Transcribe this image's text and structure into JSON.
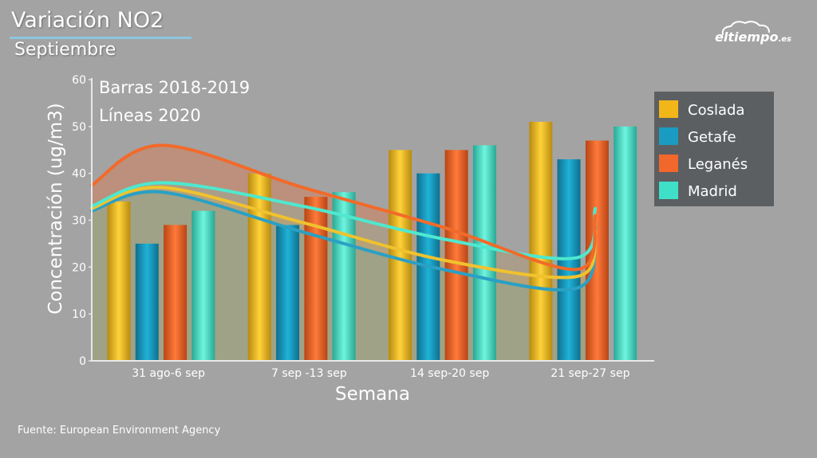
{
  "header": {
    "title": "Variación NO2",
    "subtitle": "Septiembre"
  },
  "brand": {
    "logo_text": "eltiempo",
    "logo_suffix": ".es"
  },
  "footer": {
    "source": "Fuente: European Environment Agency"
  },
  "chart_data": {
    "type": "bar",
    "title": "Variación NO2",
    "subtitle": "Septiembre",
    "xlabel": "Semana",
    "ylabel": "Concentración (ug/m3)",
    "ylim": [
      0,
      60
    ],
    "yticks": [
      0,
      10,
      20,
      30,
      40,
      50,
      60
    ],
    "grid": false,
    "legend_position": "top-right",
    "annotations": [
      "Barras 2018-2019",
      "Líneas 2020"
    ],
    "categories": [
      "31 ago-6 sep",
      "7 sep -13 sep",
      "14 sep-20 sep",
      "21 sep-27 sep"
    ],
    "bar_series": [
      {
        "name": "Coslada",
        "color": "#f2b619",
        "values": [
          34,
          40,
          45,
          51
        ]
      },
      {
        "name": "Getafe",
        "color": "#1a9cc2",
        "values": [
          25,
          29,
          40,
          43
        ]
      },
      {
        "name": "Leganés",
        "color": "#f2672b",
        "values": [
          29,
          35,
          45,
          47
        ]
      },
      {
        "name": "Madrid",
        "color": "#3fe0c8",
        "values": [
          32,
          36,
          46,
          50
        ]
      }
    ],
    "line_series": [
      {
        "name": "Coslada",
        "color": "#f0c22e",
        "x": [
          0,
          0.5,
          1.5,
          2.5,
          3.45,
          3.58
        ],
        "values": [
          32.5,
          37,
          29.5,
          21.5,
          18,
          27.5
        ]
      },
      {
        "name": "Getafe",
        "color": "#2aa0c4",
        "x": [
          0,
          0.5,
          1.5,
          2.5,
          3.45,
          3.58
        ],
        "values": [
          32,
          36,
          27.5,
          19.5,
          15.5,
          28.5
        ]
      },
      {
        "name": "Leganés",
        "color": "#f26a2a",
        "x": [
          0,
          0.5,
          1.5,
          2.5,
          3.45,
          3.58
        ],
        "values": [
          37.5,
          46,
          37,
          28.5,
          19.5,
          31
        ]
      },
      {
        "name": "Madrid",
        "color": "#4ee8cf",
        "x": [
          0,
          0.5,
          1.5,
          2.5,
          3.45,
          3.58
        ],
        "values": [
          33,
          38,
          33,
          26,
          22,
          32.5
        ]
      }
    ]
  }
}
